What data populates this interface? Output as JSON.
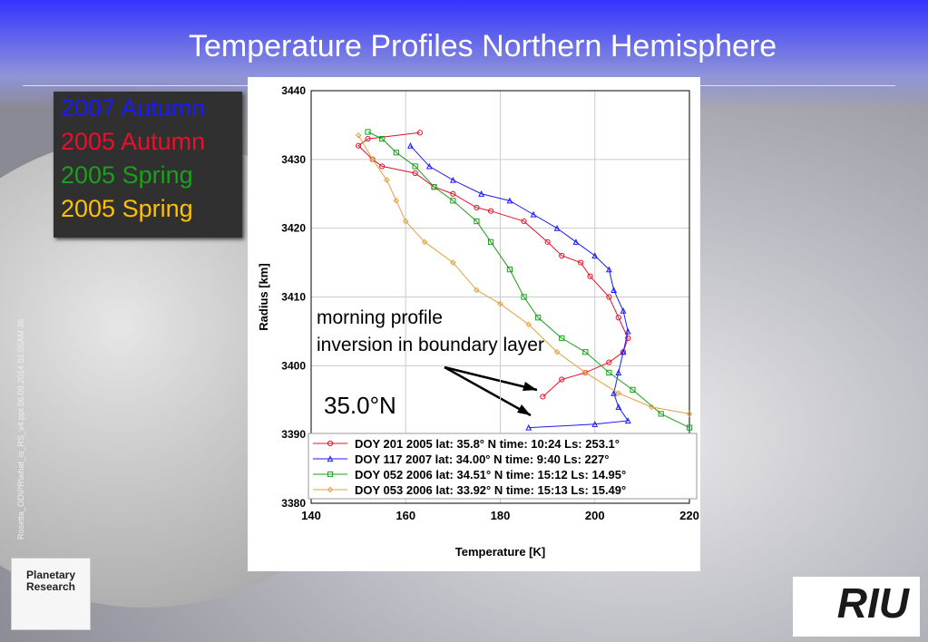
{
  "slide": {
    "title": "Temperature Profiles Northern Hemisphere",
    "key": [
      {
        "text": "2007 Autumn",
        "color": "#1a1aff"
      },
      {
        "text": "2005 Autumn",
        "color": "#e8102a"
      },
      {
        "text": "2005 Spring",
        "color": "#1aa01a"
      },
      {
        "text": "2005 Spring",
        "color": "#ffc000"
      }
    ],
    "footer_text": "Rosetta_OD\\PR\\what_is_RS_v4.ppt 06.09.2014 01:05AM 36",
    "logo_left": [
      "Planetary",
      "Research"
    ],
    "logo_right": "RIU"
  },
  "chart_data": {
    "type": "line",
    "xlabel": "Temperature [K]",
    "ylabel": "Radius [km]",
    "xlim": [
      140,
      220
    ],
    "ylim": [
      3380,
      3440
    ],
    "xticks": [
      140,
      160,
      180,
      200,
      220
    ],
    "yticks": [
      3380,
      3390,
      3400,
      3410,
      3420,
      3430,
      3440
    ],
    "grid": true,
    "annotations": [
      "morning profile",
      "inversion in boundary layer",
      "35.0°N"
    ],
    "series": [
      {
        "name": "DOY 201 2005 lat: 35.8° N  time: 10:24 Ls: 253.1°",
        "color": "#e8102a",
        "marker": "circle",
        "x": [
          163,
          152,
          150,
          153,
          155,
          162,
          166,
          170,
          175,
          178,
          185,
          190,
          193,
          197,
          199,
          203,
          205,
          207,
          206,
          203,
          198,
          193,
          189
        ],
        "values": [
          3433.9,
          3433,
          3432,
          3430,
          3429,
          3428,
          3426,
          3425,
          3423,
          3422.5,
          3421,
          3418,
          3416,
          3415,
          3413,
          3410,
          3407,
          3404,
          3402,
          3400.5,
          3399,
          3398,
          3395.5
        ]
      },
      {
        "name": "DOY 117 2007 lat: 34.00° N time: 9:40 Ls: 227°",
        "color": "#1a1aff",
        "marker": "triangle",
        "x": [
          161,
          165,
          170,
          176,
          182,
          187,
          192,
          196,
          200,
          203,
          204,
          206,
          207,
          206,
          205,
          204,
          205,
          207,
          200,
          186
        ],
        "values": [
          3432,
          3429,
          3427,
          3425,
          3424,
          3422,
          3420,
          3418,
          3416,
          3414,
          3411,
          3408,
          3405,
          3402,
          3399,
          3396,
          3394,
          3392,
          3391.5,
          3391
        ]
      },
      {
        "name": "DOY 052 2006 lat: 34.51° N time: 15:12 Ls: 14.95°",
        "color": "#1aa01a",
        "marker": "square",
        "x": [
          152,
          155,
          158,
          162,
          166,
          170,
          175,
          178,
          182,
          185,
          188,
          193,
          198,
          203,
          208,
          214,
          220
        ],
        "values": [
          3434,
          3433,
          3431,
          3429,
          3426,
          3424,
          3421,
          3418,
          3414,
          3410,
          3407,
          3404,
          3402,
          3399,
          3396.5,
          3393,
          3391
        ]
      },
      {
        "name": "DOY 053 2006 lat: 33.92° N time: 15:13 Ls: 15.49°",
        "color": "#e0a040",
        "marker": "diamond",
        "x": [
          150,
          153,
          156,
          158,
          160,
          164,
          170,
          175,
          180,
          186,
          192,
          198,
          205,
          212,
          220
        ],
        "values": [
          3433.5,
          3430,
          3427,
          3424,
          3421,
          3418,
          3415,
          3411,
          3409,
          3406,
          3402,
          3399,
          3396,
          3394,
          3393
        ]
      }
    ]
  }
}
